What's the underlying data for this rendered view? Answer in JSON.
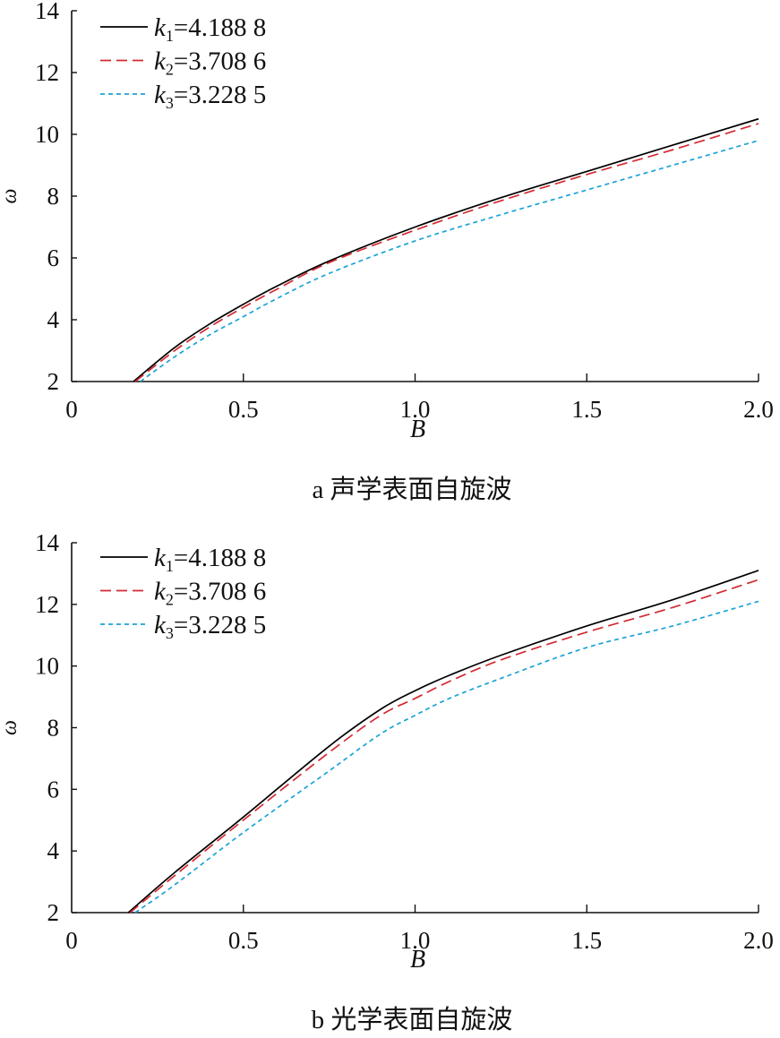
{
  "chart_data": [
    {
      "type": "line",
      "caption": "a 声学表面自旋波",
      "xlabel": "B",
      "ylabel": "ω",
      "xlim": [
        0,
        2.0
      ],
      "ylim": [
        2,
        14
      ],
      "xticks": [
        "0",
        "0.5",
        "1.0",
        "1.5",
        "2.0"
      ],
      "xtick_values": [
        0,
        0.5,
        1.0,
        1.5,
        2.0
      ],
      "yticks": [
        "2",
        "4",
        "6",
        "8",
        "10",
        "12",
        "14"
      ],
      "ytick_values": [
        2,
        4,
        6,
        8,
        10,
        12,
        14
      ],
      "legend_position": "top-left",
      "grid": false,
      "series": [
        {
          "name": "k1=4.188 8",
          "sub": "1",
          "value": "=4.188 8",
          "color": "#000000",
          "dash": "solid",
          "x": [
            0.18,
            0.3,
            0.4,
            0.5,
            0.6,
            0.75,
            1.0,
            1.25,
            1.5,
            1.75,
            2.0
          ],
          "y": [
            2.0,
            3.1,
            3.85,
            4.5,
            5.1,
            5.9,
            7.0,
            7.95,
            8.8,
            9.65,
            10.5
          ]
        },
        {
          "name": "k2=3.708 6",
          "sub": "2",
          "value": "=3.708 6",
          "color": "#d42a32",
          "dash": "dashed",
          "x": [
            0.185,
            0.3,
            0.4,
            0.5,
            0.6,
            0.75,
            1.0,
            1.25,
            1.5,
            1.75,
            2.0
          ],
          "y": [
            2.0,
            3.0,
            3.75,
            4.4,
            5.0,
            5.85,
            6.9,
            7.85,
            8.7,
            9.5,
            10.35
          ]
        },
        {
          "name": "k3=3.228 5",
          "sub": "3",
          "value": "=3.228 5",
          "color": "#1aa3d6",
          "dash": "dotted",
          "x": [
            0.2,
            0.3,
            0.4,
            0.5,
            0.6,
            0.75,
            1.0,
            1.25,
            1.5,
            1.75,
            2.0
          ],
          "y": [
            2.0,
            2.8,
            3.5,
            4.1,
            4.7,
            5.5,
            6.55,
            7.4,
            8.2,
            9.0,
            9.8
          ]
        }
      ]
    },
    {
      "type": "line",
      "caption": "b 光学表面自旋波",
      "xlabel": "B",
      "ylabel": "ω",
      "xlim": [
        0,
        2.0
      ],
      "ylim": [
        2,
        14
      ],
      "xticks": [
        "0",
        "0.5",
        "1.0",
        "1.5",
        "2.0"
      ],
      "xtick_values": [
        0,
        0.5,
        1.0,
        1.5,
        2.0
      ],
      "yticks": [
        "2",
        "4",
        "6",
        "8",
        "10",
        "12",
        "14"
      ],
      "ytick_values": [
        2,
        4,
        6,
        8,
        10,
        12,
        14
      ],
      "legend_position": "top-left",
      "grid": false,
      "series": [
        {
          "name": "k1=4.188 8",
          "sub": "1",
          "value": "=4.188 8",
          "color": "#000000",
          "dash": "solid",
          "x": [
            0.165,
            0.3,
            0.5,
            0.75,
            0.9,
            1.0,
            1.1,
            1.25,
            1.5,
            1.75,
            2.0
          ],
          "y": [
            2.0,
            3.3,
            5.1,
            7.4,
            8.6,
            9.2,
            9.7,
            10.35,
            11.3,
            12.15,
            13.1
          ]
        },
        {
          "name": "k2=3.708 6",
          "sub": "2",
          "value": "=3.708 6",
          "color": "#d42a32",
          "dash": "dashed",
          "x": [
            0.17,
            0.3,
            0.5,
            0.75,
            0.9,
            1.0,
            1.1,
            1.25,
            1.5,
            1.75,
            2.0
          ],
          "y": [
            2.0,
            3.2,
            5.0,
            7.2,
            8.4,
            8.95,
            9.5,
            10.2,
            11.1,
            11.9,
            12.8
          ]
        },
        {
          "name": "k3=3.228 5",
          "sub": "3",
          "value": "=3.228 5",
          "color": "#1aa3d6",
          "dash": "dotted",
          "x": [
            0.185,
            0.3,
            0.5,
            0.75,
            0.9,
            1.0,
            1.1,
            1.25,
            1.5,
            1.75,
            2.0
          ],
          "y": [
            2.0,
            2.9,
            4.6,
            6.6,
            7.8,
            8.4,
            8.95,
            9.6,
            10.6,
            11.3,
            12.1
          ]
        }
      ]
    }
  ]
}
